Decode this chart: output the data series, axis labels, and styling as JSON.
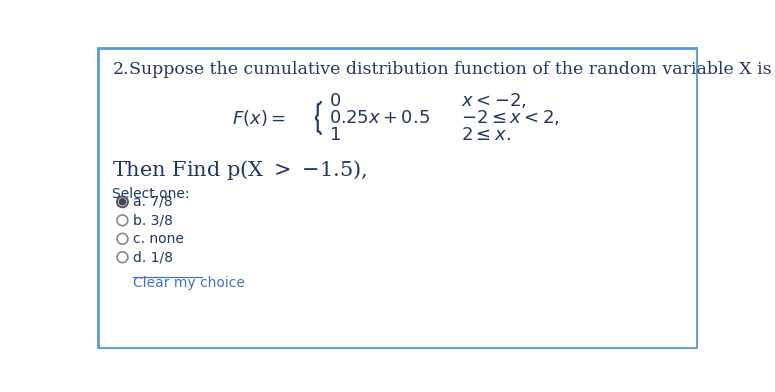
{
  "title_number": "2.",
  "title_text": "Suppose the cumulative distribution function of the random variable X is",
  "piecewise_exprs": [
    "0",
    "0.25x + 0.5",
    "1"
  ],
  "piecewise_conds": [
    "x < −2,",
    "−2 ≤ x < 2,",
    "2 ≤ x."
  ],
  "find_text": "Then Find p(X > −1.5),",
  "select_one": "Select one:",
  "options": [
    {
      "label": "a. 7/8",
      "selected": true
    },
    {
      "label": "b. 3/8",
      "selected": false
    },
    {
      "label": "c. none",
      "selected": false
    },
    {
      "label": "d. 1/8",
      "selected": false
    }
  ],
  "clear_text": "Clear my choice",
  "bg_color": "#ffffff",
  "border_color": "#5b9bd5",
  "text_color": "#1f3864",
  "title_fontsize": 12.5,
  "math_fontsize": 13,
  "find_fontsize": 15,
  "small_fontsize": 10,
  "radio_outer_color": "#555566",
  "radio_inner_color": "#444455",
  "link_color": "#4472c4"
}
